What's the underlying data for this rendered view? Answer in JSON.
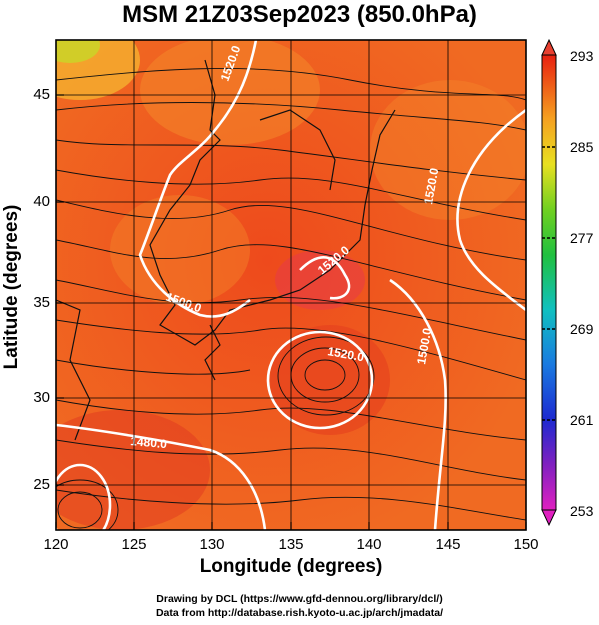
{
  "title": "MSM 21Z03Sep2023 (850.0hPa)",
  "xlabel": "Longitude (degrees)",
  "ylabel": "Latitude  (degrees)",
  "x_ticks": [
    "120",
    "125",
    "130",
    "135",
    "140",
    "145",
    "150"
  ],
  "y_ticks": [
    "25",
    "30",
    "35",
    "40",
    "45"
  ],
  "colorbar_ticks": [
    "293",
    "285",
    "277",
    "269",
    "261",
    "253"
  ],
  "contour_labels": [
    "1520.0",
    "1520.0",
    "1500.0",
    "1520.0",
    "1480.0",
    "1520.0",
    "1500.0"
  ],
  "footer": {
    "line1": "Drawing by DCL (https://www.gfd-dennou.org/library/dcl/)",
    "line2": "Data from http://database.rish.kyoto-u.ac.jp/arch/jmadata/"
  },
  "colors": {
    "field_main": "#f05a1e",
    "field_warm": "#e83a20",
    "field_cool": "#f59a28",
    "contour": "#ffffff",
    "streamline": "#111111"
  },
  "chart_data": {
    "type": "heatmap",
    "variable": "temperature (K) at 850 hPa with geopotential height contours and wind streamlines",
    "xlim": [
      120,
      150
    ],
    "ylim": [
      22.5,
      48
    ],
    "colorbar_range": [
      253,
      293
    ],
    "colorbar_ticks": [
      293,
      285,
      277,
      269,
      261,
      253
    ],
    "contour_levels": [
      1480,
      1500,
      1520
    ],
    "typhoon_center": [
      137,
      31.5
    ]
  }
}
